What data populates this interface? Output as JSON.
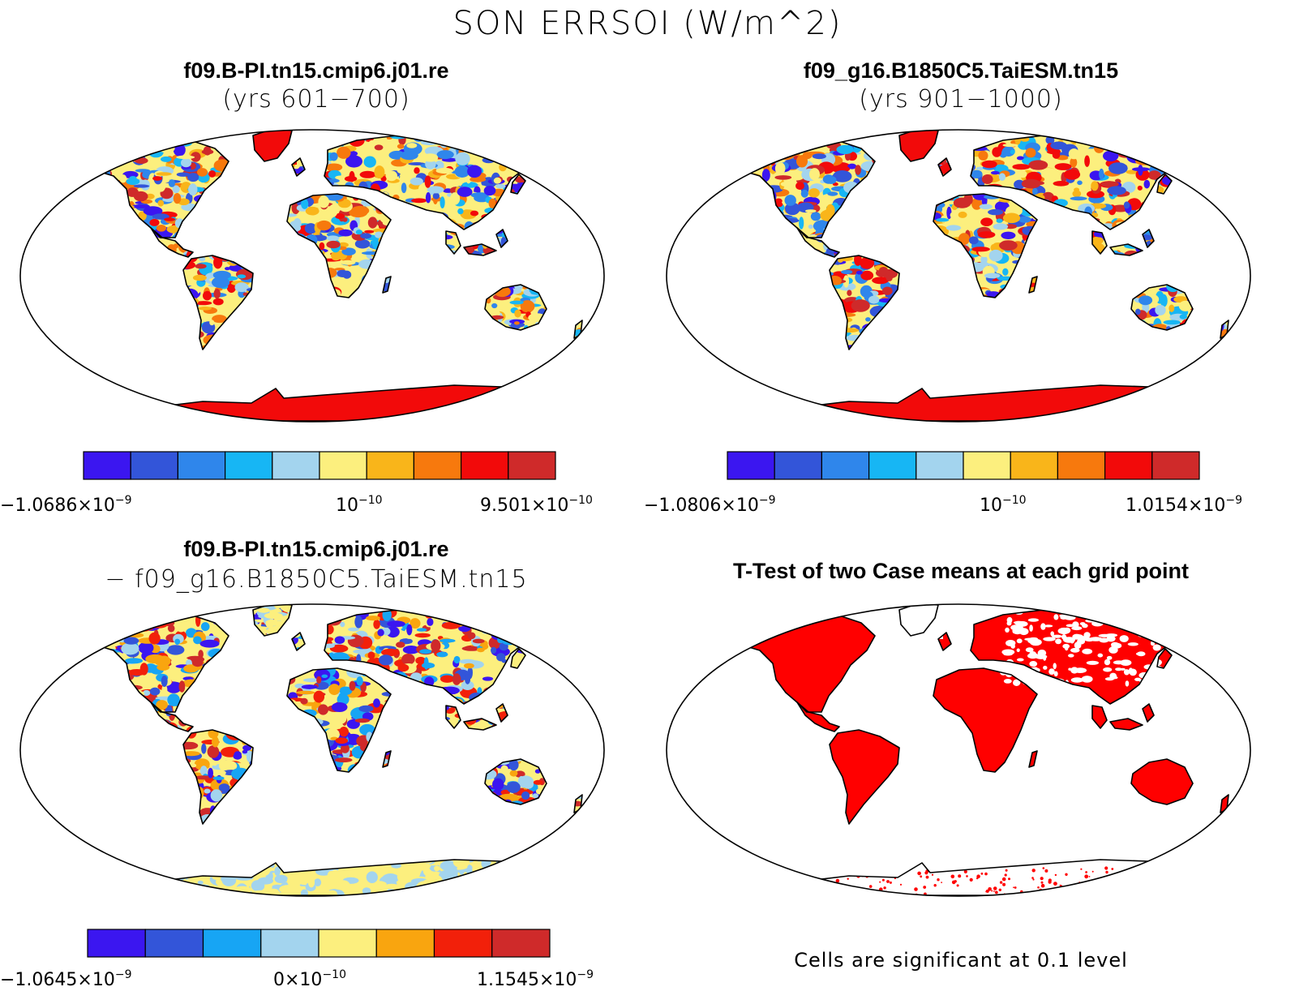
{
  "title": "SON ERRSOI (W/m^2)",
  "panels": [
    {
      "id": "case1",
      "title": "f09.B-PI.tn15.cmip6.j01.re",
      "subtitle": "(yrs 601−700)",
      "palette": [
        "#3b16f0",
        "#3355d9",
        "#2f86eb",
        "#17b6f4",
        "#a3d4ee",
        "#fcef7e",
        "#f9b51a",
        "#f7790d",
        "#f20a0a",
        "#cf2a2a"
      ],
      "colorbar": {
        "min_label": {
          "mantissa": "−1.0686×10",
          "exp": "−9"
        },
        "mid_label": {
          "mantissa": "10",
          "exp": "−10"
        },
        "max_label": {
          "mantissa": "9.501×10",
          "exp": "−10"
        }
      }
    },
    {
      "id": "case2",
      "title": "f09_g16.B1850C5.TaiESM.tn15",
      "subtitle": "(yrs 901−1000)",
      "palette": [
        "#3b16f0",
        "#3355d9",
        "#2f86eb",
        "#17b6f4",
        "#a3d4ee",
        "#fcef7e",
        "#f9b51a",
        "#f7790d",
        "#f20a0a",
        "#cf2a2a"
      ],
      "colorbar": {
        "min_label": {
          "mantissa": "−1.0806×10",
          "exp": "−9"
        },
        "mid_label": {
          "mantissa": "10",
          "exp": "−10"
        },
        "max_label": {
          "mantissa": "1.0154×10",
          "exp": "−9"
        }
      }
    },
    {
      "id": "diff",
      "title": "f09.B-PI.tn15.cmip6.j01.re",
      "subtitle": "− f09_g16.B1850C5.TaiESM.tn15",
      "palette": [
        "#3b16f0",
        "#3355d9",
        "#17a5f4",
        "#a3d4ee",
        "#fcef7e",
        "#f9a50f",
        "#f2200a",
        "#cf2a2a"
      ],
      "colorbar": {
        "min_label": {
          "mantissa": "−1.0645×10",
          "exp": "−9"
        },
        "mid_label": {
          "mantissa": "0×10",
          "exp": "−10"
        },
        "max_label": {
          "mantissa": "1.1545×10",
          "exp": "−9"
        }
      }
    },
    {
      "id": "ttest",
      "title": "T-Test of two Case means at each grid point",
      "significant_color": "#ff0000",
      "note": "Cells are significant at 0.1 level"
    }
  ]
}
